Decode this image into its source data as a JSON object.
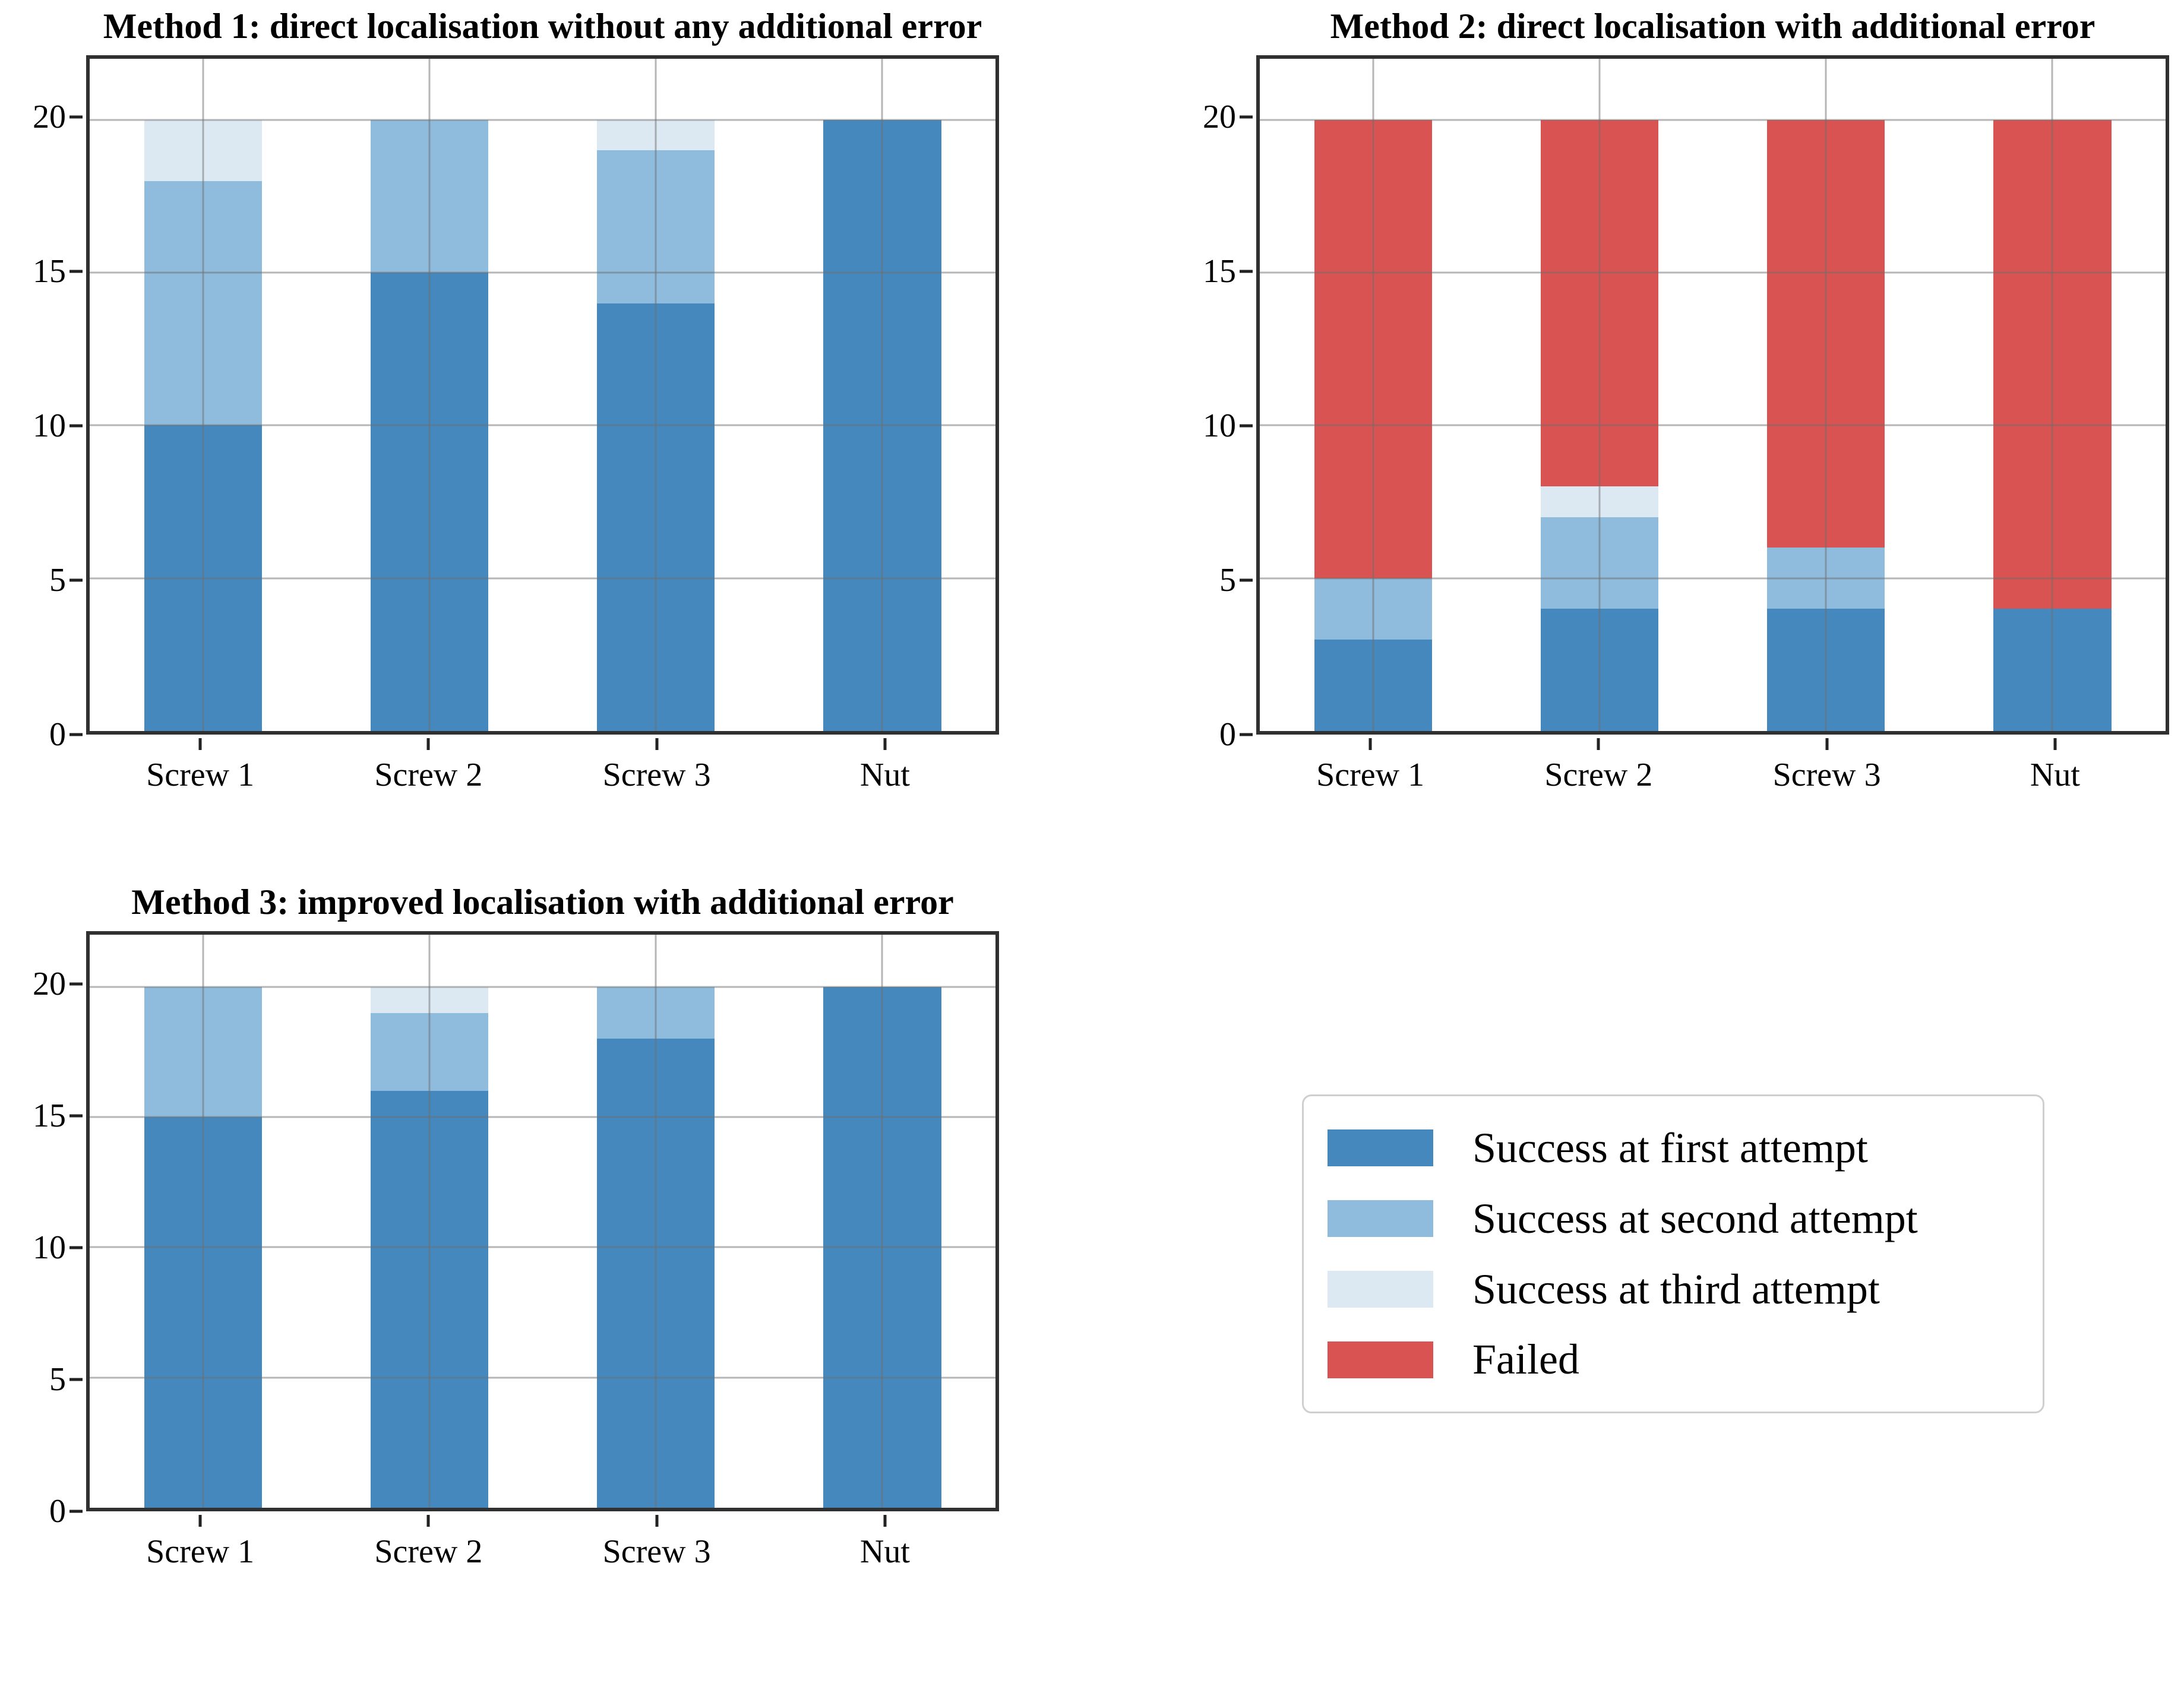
{
  "figure": {
    "background": "#ffffff"
  },
  "palette": {
    "success_first": "#4488BE",
    "success_second": "#8FBBDC",
    "success_third": "#DCE8F2",
    "failed": "#D85351",
    "gridline": "#b4b4b4",
    "spine": "#303030"
  },
  "legend": {
    "entries": [
      {
        "label": "Success at first attempt",
        "color": "#4488BE"
      },
      {
        "label": "Success at second attempt",
        "color": "#8FBBDC"
      },
      {
        "label": "Success at third attempt",
        "color": "#DCE8F2"
      },
      {
        "label": "Failed",
        "color": "#D85351"
      }
    ]
  },
  "chart_data": [
    {
      "type": "bar",
      "stacked": true,
      "title": "Method 1: direct localisation without any additional error",
      "categories": [
        "Screw 1",
        "Screw 2",
        "Screw 3",
        "Nut"
      ],
      "ylim": [
        0,
        22
      ],
      "yticks": [
        0,
        5,
        10,
        15,
        20
      ],
      "grid": true,
      "legend_position": "shared-bottom-right",
      "series": [
        {
          "name": "Success at first attempt",
          "color": "#4488BE",
          "values": [
            10,
            15,
            14,
            20
          ]
        },
        {
          "name": "Success at second attempt",
          "color": "#8FBBDC",
          "values": [
            8,
            5,
            5,
            0
          ]
        },
        {
          "name": "Success at third attempt",
          "color": "#DCE8F2",
          "values": [
            2,
            0,
            1,
            0
          ]
        },
        {
          "name": "Failed",
          "color": "#D85351",
          "values": [
            0,
            0,
            0,
            0
          ]
        }
      ]
    },
    {
      "type": "bar",
      "stacked": true,
      "title": "Method 2: direct localisation with additional error",
      "categories": [
        "Screw 1",
        "Screw 2",
        "Screw 3",
        "Nut"
      ],
      "ylim": [
        0,
        22
      ],
      "yticks": [
        0,
        5,
        10,
        15,
        20
      ],
      "grid": true,
      "legend_position": "shared-bottom-right",
      "series": [
        {
          "name": "Success at first attempt",
          "color": "#4488BE",
          "values": [
            3,
            4,
            4,
            4
          ]
        },
        {
          "name": "Success at second attempt",
          "color": "#8FBBDC",
          "values": [
            2,
            3,
            2,
            0
          ]
        },
        {
          "name": "Success at third attempt",
          "color": "#DCE8F2",
          "values": [
            0,
            1,
            0,
            0
          ]
        },
        {
          "name": "Failed",
          "color": "#D85351",
          "values": [
            15,
            12,
            14,
            16
          ]
        }
      ]
    },
    {
      "type": "bar",
      "stacked": true,
      "title": "Method 3: improved localisation with additional error",
      "categories": [
        "Screw 1",
        "Screw 2",
        "Screw 3",
        "Nut"
      ],
      "ylim": [
        0,
        22
      ],
      "yticks": [
        0,
        5,
        10,
        15,
        20
      ],
      "grid": true,
      "legend_position": "shared-bottom-right",
      "series": [
        {
          "name": "Success at first attempt",
          "color": "#4488BE",
          "values": [
            15,
            16,
            18,
            20
          ]
        },
        {
          "name": "Success at second attempt",
          "color": "#8FBBDC",
          "values": [
            5,
            3,
            2,
            0
          ]
        },
        {
          "name": "Success at third attempt",
          "color": "#DCE8F2",
          "values": [
            0,
            1,
            0,
            0
          ]
        },
        {
          "name": "Failed",
          "color": "#D85351",
          "values": [
            0,
            0,
            0,
            0
          ]
        }
      ]
    }
  ]
}
